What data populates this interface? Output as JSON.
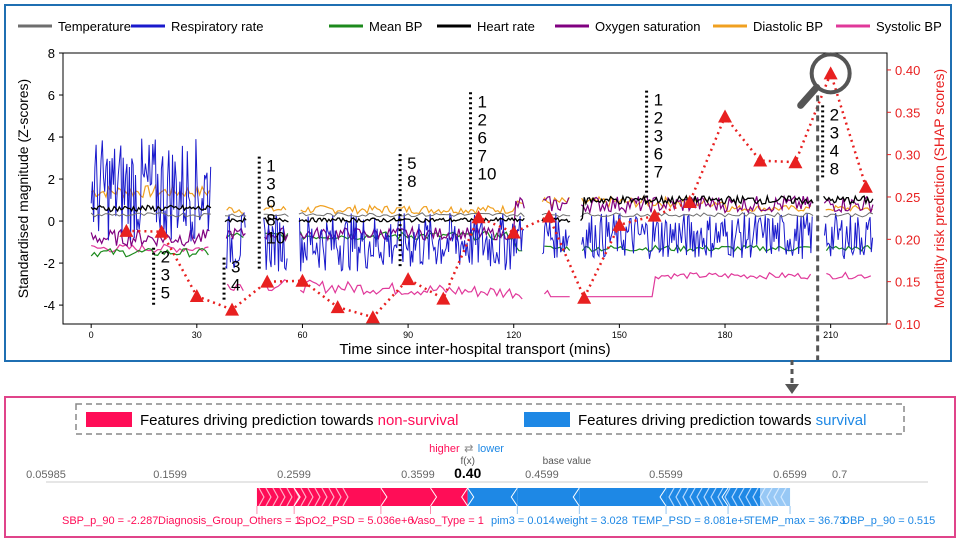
{
  "chart_data": [
    {
      "type": "line",
      "xlabel": "Time since inter-hospital transport (mins)",
      "ylabel": "Standardised magnitude (Z-scores)",
      "y2label": "Mortality risk prediction (SHAP scores)",
      "xlim": [
        -8,
        226
      ],
      "ylim": [
        -4.9,
        8
      ],
      "y2lim": [
        0.1,
        0.42
      ],
      "xticks": [
        0,
        30,
        60,
        90,
        120,
        150,
        180,
        210
      ],
      "yticks": [
        -4,
        -2,
        0,
        2,
        4,
        6,
        8
      ],
      "y2ticks": [
        0.1,
        0.15,
        0.2,
        0.25,
        0.3,
        0.35,
        0.4
      ],
      "legend_position": "top",
      "series": [
        {
          "name": "Temperature",
          "color": "#6e6e6e"
        },
        {
          "name": "Respiratory rate",
          "color": "#1a1acc"
        },
        {
          "name": "Mean BP",
          "color": "#1c8a1c"
        },
        {
          "name": "Heart rate",
          "color": "#000000"
        },
        {
          "name": "Oxygen saturation",
          "color": "#800080"
        },
        {
          "name": "Diastolic BP",
          "color": "#f0a020"
        },
        {
          "name": "Systolic BP",
          "color": "#e0389a"
        }
      ],
      "risk_series": {
        "color": "#e82020",
        "points": [
          [
            10,
            0.21
          ],
          [
            20,
            0.209
          ],
          [
            30,
            0.133
          ],
          [
            40,
            0.117
          ],
          [
            50,
            0.15
          ],
          [
            60,
            0.151
          ],
          [
            70,
            0.12
          ],
          [
            80,
            0.108
          ],
          [
            90,
            0.153
          ],
          [
            100,
            0.13
          ],
          [
            110,
            0.226
          ],
          [
            120,
            0.208
          ],
          [
            130,
            0.227
          ],
          [
            140,
            0.131
          ],
          [
            150,
            0.217
          ],
          [
            160,
            0.228
          ],
          [
            170,
            0.244
          ],
          [
            180,
            0.345
          ],
          [
            190,
            0.293
          ],
          [
            200,
            0.291
          ],
          [
            210,
            0.396
          ],
          [
            220,
            0.262
          ]
        ]
      },
      "annotations": [
        {
          "x": 20,
          "text_lines": [
            "2",
            "3",
            "5"
          ]
        },
        {
          "x": 40,
          "text_lines": [
            "3",
            "4"
          ]
        },
        {
          "x": 50,
          "text_lines": [
            "1",
            "3",
            "6",
            "8",
            "10"
          ]
        },
        {
          "x": 90,
          "text_lines": [
            "5",
            "8"
          ]
        },
        {
          "x": 110,
          "text_lines": [
            "1",
            "2",
            "6",
            "7",
            "10"
          ]
        },
        {
          "x": 160,
          "text_lines": [
            "1",
            "2",
            "3",
            "6",
            "7"
          ]
        },
        {
          "x": 210,
          "text_lines": [
            "2",
            "3",
            "4",
            "8"
          ]
        }
      ]
    },
    {
      "type": "bar",
      "legend": {
        "positive_prefix": "Features driving prediction towards ",
        "positive_word": "non-survival",
        "negative_prefix": "Features driving prediction towards ",
        "negative_word": "survival"
      },
      "higher_label": "higher",
      "lower_label": "lower",
      "fx_label": "f(x)",
      "fx_value": "0.40",
      "fx": 0.4,
      "base_label": "base value",
      "base_value": 0.48,
      "axis_ticks": [
        {
          "value": 0.05985,
          "label": "0.05985"
        },
        {
          "value": 0.1599,
          "label": "0.1599"
        },
        {
          "value": 0.2599,
          "label": "0.2599"
        },
        {
          "value": 0.3599,
          "label": "0.3599"
        },
        {
          "value": 0.4599,
          "label": "0.4599"
        },
        {
          "value": 0.5599,
          "label": "0.5599"
        },
        {
          "value": 0.6599,
          "label": "0.6599"
        },
        {
          "value": 0.7,
          "label": "0.7"
        }
      ],
      "xlim": [
        0.05985,
        0.76
      ],
      "positive_color": "#ff0d57",
      "negative_color": "#1e88e5",
      "positive_segments": [
        {
          "start": 0.23,
          "end": 0.26,
          "label": "SBP_p_90 = -2.287"
        },
        {
          "start": 0.26,
          "end": 0.33,
          "label": "Diagnosis_Group_Others = 1"
        },
        {
          "start": 0.33,
          "end": 0.37,
          "label": "SpO2_PSD = 5.036e+6"
        },
        {
          "start": 0.37,
          "end": 0.4,
          "label": "Vaso_Type = 1"
        }
      ],
      "negative_segments": [
        {
          "start": 0.4,
          "end": 0.44,
          "label": "pim3 = 0.014"
        },
        {
          "start": 0.44,
          "end": 0.49,
          "label": "weight = 3.028"
        },
        {
          "start": 0.49,
          "end": 0.56,
          "label": "TEMP_PSD = 8.081e+5"
        },
        {
          "start": 0.56,
          "end": 0.61,
          "label": "TEMP_max = 36.73"
        },
        {
          "start": 0.61,
          "end": 0.66,
          "label": "DBP_p_90 = 0.515"
        }
      ]
    }
  ]
}
